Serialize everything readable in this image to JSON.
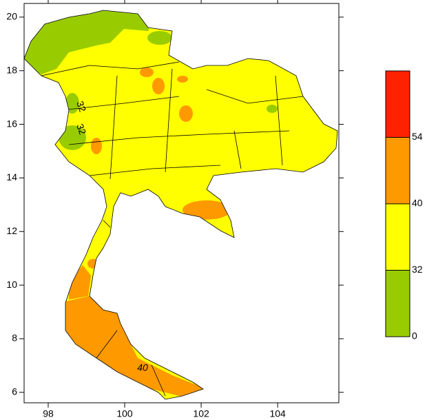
{
  "chart_data": {
    "type": "contour-map",
    "xlim": [
      97.37,
      105.6
    ],
    "ylim": [
      5.61,
      20.51
    ],
    "xticks": [
      98,
      100,
      102,
      104
    ],
    "yticks": [
      6,
      8,
      10,
      12,
      14,
      16,
      18,
      20
    ],
    "colorbar": {
      "levels": [
        0,
        32,
        40,
        54
      ],
      "colors": [
        "#99cc00",
        "#ffff00",
        "#ff9900",
        "#ff2200"
      ]
    },
    "annotations": [
      "32",
      "32",
      "40"
    ]
  }
}
